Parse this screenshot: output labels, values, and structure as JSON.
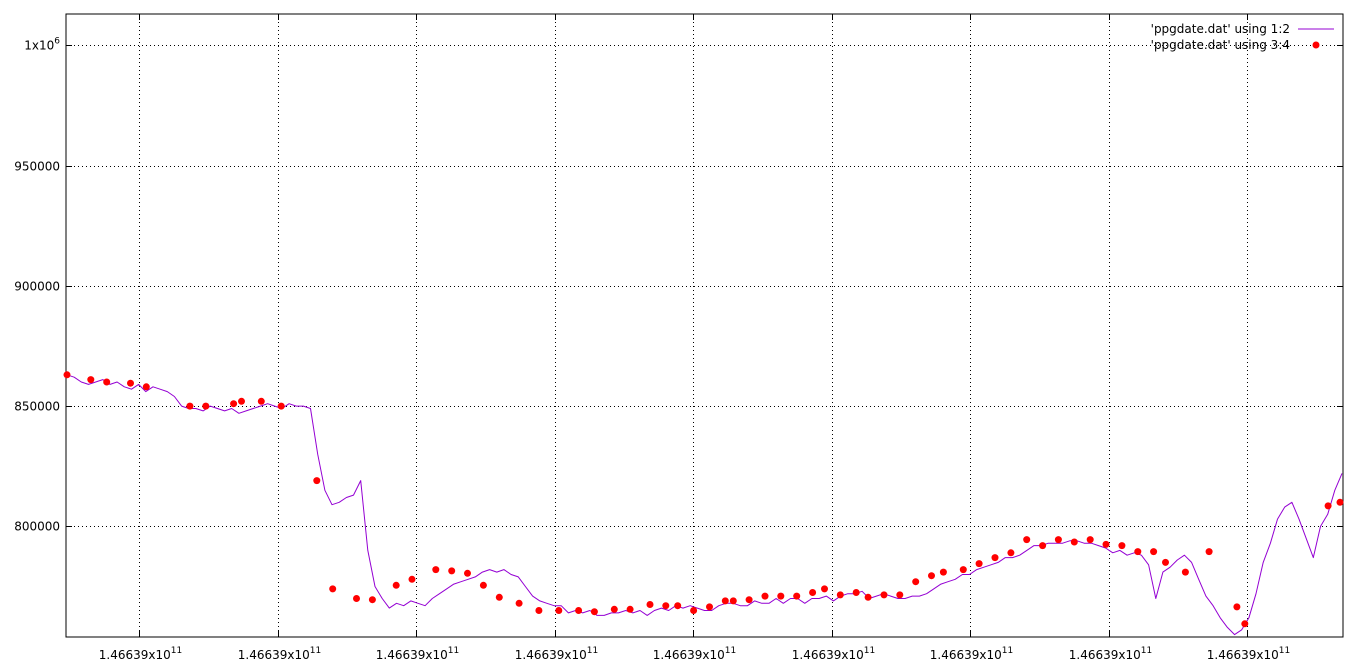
{
  "chart_data": {
    "type": "line",
    "title": "",
    "xlabel": "",
    "ylabel": "",
    "grid": true,
    "legend_position": "top-right",
    "x_tick_labels": [
      "1.46639x10^11",
      "1.46639x10^11",
      "1.46639x10^11",
      "1.46639x10^11",
      "1.46639x10^11",
      "1.46639x10^11",
      "1.46639x10^11",
      "1.46639x10^11",
      "1.46639x10^11"
    ],
    "y_ticks": [
      {
        "value": 800000,
        "label": "800000"
      },
      {
        "value": 850000,
        "label": "850000"
      },
      {
        "value": 900000,
        "label": "900000"
      },
      {
        "value": 950000,
        "label": "950000"
      },
      {
        "value": 1000000,
        "label": "1x10^6"
      }
    ],
    "ylim": [
      754000,
      1013000
    ],
    "series": [
      {
        "name": "'ppgdate.dat' using 1:2",
        "style": "line",
        "color": "#9400d3",
        "values": [
          863000,
          862000,
          860000,
          859000,
          860000,
          861000,
          859000,
          860000,
          858000,
          857000,
          859000,
          856000,
          858000,
          857000,
          856000,
          854000,
          850000,
          849000,
          849000,
          848000,
          850000,
          849000,
          848000,
          849000,
          847000,
          848000,
          849000,
          850000,
          851000,
          850000,
          849000,
          851000,
          850000,
          850000,
          849000,
          830000,
          815000,
          809000,
          810000,
          812000,
          813000,
          819000,
          790000,
          775000,
          770000,
          766000,
          768000,
          767000,
          769000,
          768000,
          767000,
          770000,
          772000,
          774000,
          776000,
          777000,
          778000,
          779000,
          781000,
          782000,
          781000,
          782000,
          780000,
          779000,
          775000,
          771000,
          769000,
          768000,
          767000,
          767000,
          764000,
          765000,
          764000,
          765000,
          763000,
          763000,
          764000,
          764000,
          765000,
          764000,
          765000,
          763000,
          765000,
          766000,
          765000,
          767000,
          766000,
          767000,
          766000,
          765000,
          765000,
          767000,
          768000,
          768000,
          767000,
          767000,
          769000,
          768000,
          768000,
          770000,
          768000,
          770000,
          770000,
          768000,
          770000,
          770000,
          771000,
          769000,
          771000,
          772000,
          772000,
          773000,
          770000,
          771000,
          772000,
          771000,
          770000,
          770000,
          771000,
          771000,
          772000,
          774000,
          776000,
          777000,
          778000,
          780000,
          780000,
          782000,
          783000,
          784000,
          785000,
          787000,
          787000,
          788000,
          790000,
          792000,
          792000,
          793000,
          793000,
          793000,
          794000,
          794000,
          793000,
          793000,
          792000,
          791000,
          789000,
          790000,
          788000,
          789000,
          788000,
          784000,
          770000,
          781000,
          783000,
          786000,
          788000,
          785000,
          778000,
          771000,
          767000,
          762000,
          758000,
          755000,
          757000,
          762000,
          772000,
          785000,
          793000,
          803000,
          808000,
          810000,
          803000,
          795000,
          787000,
          800000,
          805000,
          815000,
          822000
        ]
      },
      {
        "name": "'ppgdate.dat' using 3:4",
        "style": "points",
        "color": "#ff0000",
        "points": [
          [
            0,
            863000
          ],
          [
            12,
            861000
          ],
          [
            20,
            860000
          ],
          [
            32,
            859500
          ],
          [
            40,
            858000
          ],
          [
            62,
            850000
          ],
          [
            70,
            850000
          ],
          [
            84,
            851000
          ],
          [
            88,
            852000
          ],
          [
            98,
            852000
          ],
          [
            108,
            850000
          ],
          [
            126,
            819000
          ],
          [
            134,
            774000
          ],
          [
            146,
            770000
          ],
          [
            154,
            769500
          ],
          [
            166,
            775500
          ],
          [
            174,
            778000
          ],
          [
            186,
            782000
          ],
          [
            194,
            781500
          ],
          [
            202,
            780500
          ],
          [
            210,
            775500
          ],
          [
            218,
            770500
          ],
          [
            228,
            768000
          ],
          [
            238,
            765000
          ],
          [
            248,
            765000
          ],
          [
            258,
            765000
          ],
          [
            266,
            764500
          ],
          [
            276,
            765500
          ],
          [
            284,
            765500
          ],
          [
            294,
            767500
          ],
          [
            302,
            767000
          ],
          [
            308,
            767000
          ],
          [
            316,
            765000
          ],
          [
            324,
            766500
          ],
          [
            332,
            769000
          ],
          [
            336,
            769000
          ],
          [
            344,
            769500
          ],
          [
            352,
            771000
          ],
          [
            360,
            771000
          ],
          [
            368,
            771000
          ],
          [
            376,
            772500
          ],
          [
            382,
            774000
          ],
          [
            390,
            771500
          ],
          [
            398,
            772500
          ],
          [
            404,
            770500
          ],
          [
            412,
            771500
          ],
          [
            420,
            771500
          ],
          [
            428,
            777000
          ],
          [
            436,
            779500
          ],
          [
            442,
            781000
          ],
          [
            452,
            782000
          ],
          [
            460,
            784500
          ],
          [
            468,
            787000
          ],
          [
            476,
            789000
          ],
          [
            484,
            794500
          ],
          [
            492,
            792000
          ],
          [
            500,
            794500
          ],
          [
            508,
            793500
          ],
          [
            516,
            794500
          ],
          [
            524,
            792500
          ],
          [
            532,
            792000
          ],
          [
            540,
            789500
          ],
          [
            548,
            789500
          ],
          [
            554,
            785000
          ],
          [
            564,
            781000
          ],
          [
            576,
            789500
          ],
          [
            590,
            766500
          ],
          [
            594,
            759500
          ],
          [
            636,
            808500
          ],
          [
            642,
            810000
          ]
        ]
      }
    ]
  }
}
